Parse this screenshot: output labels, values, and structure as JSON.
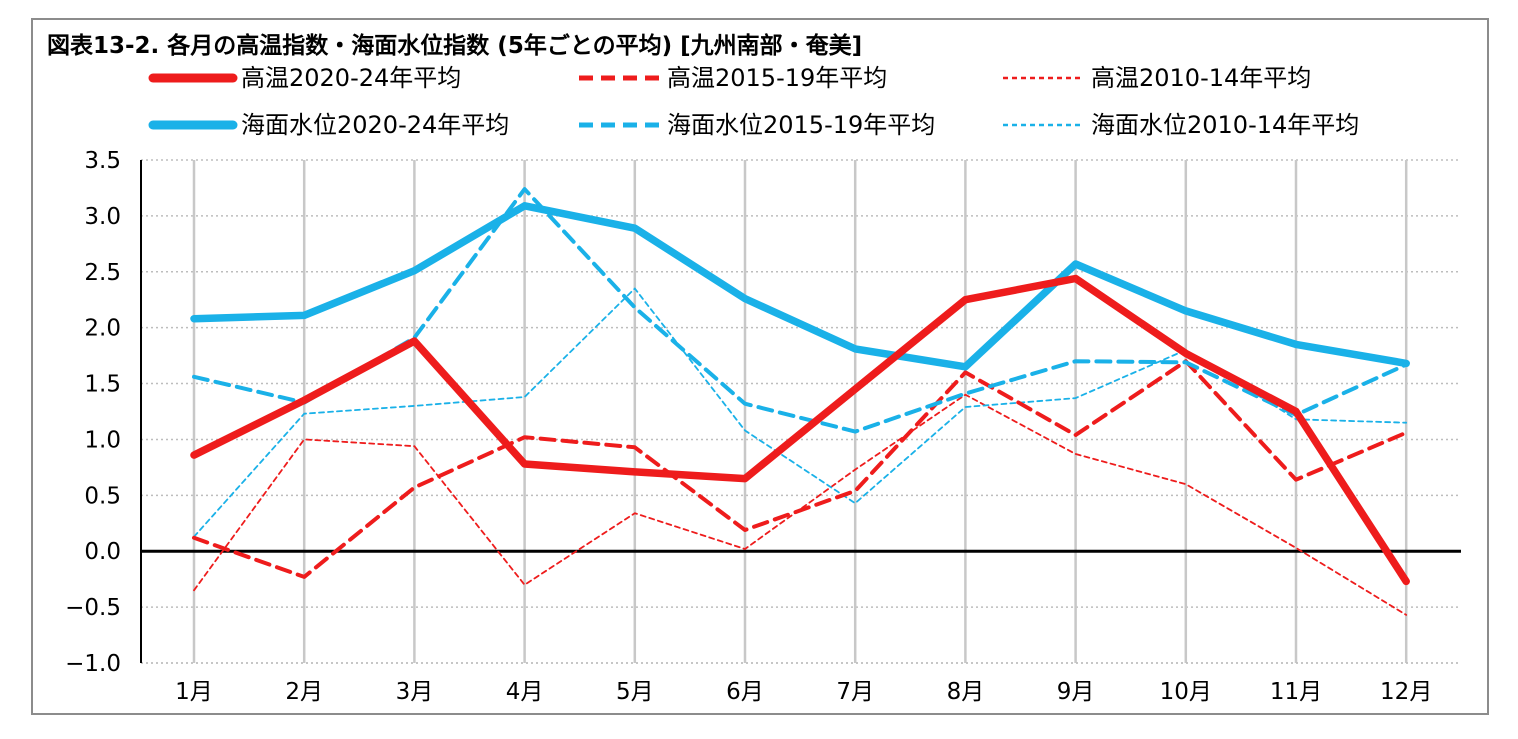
{
  "chart_data": {
    "type": "line",
    "title": "図表13-2. 各月の高温指数・海面水位指数 (5年ごとの平均) [九州南部・奄美]",
    "categories": [
      "1月",
      "2月",
      "3月",
      "4月",
      "5月",
      "6月",
      "7月",
      "8月",
      "9月",
      "10月",
      "11月",
      "12月"
    ],
    "ylim": [
      -1.0,
      3.5
    ],
    "yticks": [
      "3.5",
      "3.0",
      "2.5",
      "2.0",
      "1.5",
      "1.0",
      "0.5",
      "0.0",
      "−0.5",
      "−1.0"
    ],
    "grid": true,
    "legend_position": "top",
    "series": [
      {
        "name": "高温2020-24年平均",
        "color": "#ee1c1c",
        "style": "solid-thick",
        "values": [
          0.86,
          1.35,
          1.88,
          0.78,
          0.71,
          0.65,
          1.45,
          2.25,
          2.44,
          1.77,
          1.25,
          -0.27
        ]
      },
      {
        "name": "高温2015-19年平均",
        "color": "#ee1c1c",
        "style": "dash-medium",
        "values": [
          0.12,
          -0.23,
          0.57,
          1.02,
          0.93,
          0.19,
          0.54,
          1.6,
          1.04,
          1.7,
          0.64,
          1.06
        ]
      },
      {
        "name": "高温2010-14年平均",
        "color": "#ee1c1c",
        "style": "dash-thin",
        "values": [
          -0.35,
          1.0,
          0.94,
          -0.3,
          0.34,
          0.02,
          0.73,
          1.4,
          0.87,
          0.6,
          0.03,
          -0.57
        ]
      },
      {
        "name": "海面水位2020-24年平均",
        "color": "#1ab1e8",
        "style": "solid-thick",
        "values": [
          2.08,
          2.11,
          2.51,
          3.09,
          2.89,
          2.26,
          1.81,
          1.65,
          2.57,
          2.15,
          1.85,
          1.68
        ]
      },
      {
        "name": "海面水位2015-19年平均",
        "color": "#1ab1e8",
        "style": "dash-medium",
        "values": [
          1.56,
          1.33,
          1.91,
          3.24,
          2.18,
          1.32,
          1.07,
          1.41,
          1.7,
          1.69,
          1.22,
          1.67
        ]
      },
      {
        "name": "海面水位2010-14年平均",
        "color": "#1ab1e8",
        "style": "dash-thin",
        "values": [
          0.13,
          1.23,
          1.3,
          1.38,
          2.35,
          1.08,
          0.43,
          1.29,
          1.37,
          1.8,
          1.18,
          1.15
        ]
      }
    ]
  }
}
